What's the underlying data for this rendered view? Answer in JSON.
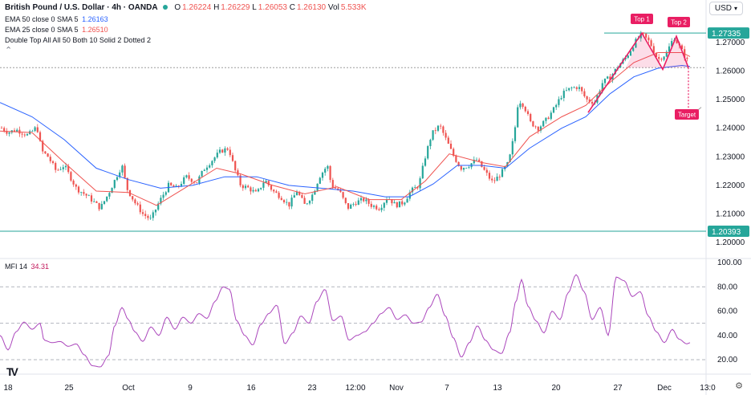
{
  "header": {
    "symbol": "British Pound / U.S. Dollar · 4h · OANDA",
    "o_label": "O",
    "o_value": "1.26224",
    "h_label": "H",
    "h_value": "1.26229",
    "l_label": "L",
    "l_value": "1.26053",
    "c_label": "C",
    "c_value": "1.26130",
    "vol_label": "Vol",
    "vol_value": "5.533K"
  },
  "indicators": [
    {
      "label": "EMA 50 close 0 SMA 5",
      "value": "1.26163",
      "color": "#2962ff"
    },
    {
      "label": "EMA 25 close 0 SMA 5",
      "value": "1.26510",
      "color": "#ef5350"
    },
    {
      "label": "Double Top All All 50 Both 10 Solid 2 Dotted 2",
      "value": "",
      "color": "#131722"
    }
  ],
  "currency_button": "USD",
  "mfi_label": "MFI 14",
  "mfi_value": "34.31",
  "chart_data": {
    "type": "candlestick",
    "price_axis": {
      "ticks": [
        "1.27000",
        "1.26000",
        "1.25000",
        "1.24000",
        "1.23000",
        "1.22000",
        "1.21000",
        "1.20000"
      ],
      "range": [
        1.1955,
        1.28
      ]
    },
    "highlighted_levels": [
      {
        "value": 1.27335,
        "label": "1.27335"
      },
      {
        "value": 1.20393,
        "label": "1.20393"
      }
    ],
    "neckline": 1.2612,
    "pattern": {
      "name": "Double Top",
      "top1_label": "Top 1",
      "top2_label": "Top 2",
      "target_label": "Target",
      "top1": 1.2733,
      "top2": 1.2722,
      "valley": 1.2606,
      "target": 1.2465
    },
    "x_axis_labels": [
      "18",
      "25",
      "Oct",
      "9",
      "16",
      "23",
      "12:00",
      "Nov",
      "7",
      "13",
      "20",
      "27",
      "Dec",
      "13:0"
    ],
    "close_path": [
      [
        0,
        1.2405
      ],
      [
        10,
        1.2385
      ],
      [
        20,
        1.2395
      ],
      [
        35,
        1.2375
      ],
      [
        46,
        1.2405
      ],
      [
        52,
        1.232
      ],
      [
        60,
        1.23
      ],
      [
        70,
        1.225
      ],
      [
        80,
        1.227
      ],
      [
        95,
        1.219
      ],
      [
        110,
        1.216
      ],
      [
        125,
        1.212
      ],
      [
        135,
        1.217
      ],
      [
        145,
        1.223
      ],
      [
        152,
        1.227
      ],
      [
        158,
        1.219
      ],
      [
        168,
        1.214
      ],
      [
        178,
        1.21
      ],
      [
        188,
        1.208
      ],
      [
        198,
        1.214
      ],
      [
        210,
        1.22
      ],
      [
        220,
        1.219
      ],
      [
        232,
        1.223
      ],
      [
        245,
        1.221
      ],
      [
        255,
        1.226
      ],
      [
        265,
        1.229
      ],
      [
        275,
        1.232
      ],
      [
        285,
        1.233
      ],
      [
        292,
        1.226
      ],
      [
        300,
        1.22
      ],
      [
        310,
        1.219
      ],
      [
        320,
        1.217
      ],
      [
        330,
        1.222
      ],
      [
        340,
        1.218
      ],
      [
        350,
        1.216
      ],
      [
        360,
        1.213
      ],
      [
        370,
        1.218
      ],
      [
        380,
        1.213
      ],
      [
        390,
        1.217
      ],
      [
        398,
        1.223
      ],
      [
        408,
        1.227
      ],
      [
        413,
        1.22
      ],
      [
        423,
        1.218
      ],
      [
        433,
        1.212
      ],
      [
        443,
        1.214
      ],
      [
        453,
        1.215
      ],
      [
        463,
        1.213
      ],
      [
        473,
        1.212
      ],
      [
        483,
        1.216
      ],
      [
        493,
        1.213
      ],
      [
        503,
        1.214
      ],
      [
        512,
        1.218
      ],
      [
        522,
        1.22
      ],
      [
        530,
        1.23
      ],
      [
        538,
        1.238
      ],
      [
        548,
        1.241
      ],
      [
        556,
        1.236
      ],
      [
        564,
        1.231
      ],
      [
        574,
        1.226
      ],
      [
        584,
        1.227
      ],
      [
        594,
        1.229
      ],
      [
        604,
        1.225
      ],
      [
        614,
        1.221
      ],
      [
        624,
        1.224
      ],
      [
        634,
        1.228
      ],
      [
        641,
        1.238
      ],
      [
        646,
        1.25
      ],
      [
        653,
        1.248
      ],
      [
        661,
        1.242
      ],
      [
        671,
        1.24
      ],
      [
        681,
        1.243
      ],
      [
        691,
        1.247
      ],
      [
        701,
        1.252
      ],
      [
        711,
        1.254
      ],
      [
        721,
        1.2545
      ],
      [
        731,
        1.25
      ],
      [
        741,
        1.249
      ],
      [
        751,
        1.256
      ],
      [
        761,
        1.258
      ],
      [
        771,
        1.262
      ],
      [
        781,
        1.265
      ],
      [
        791,
        1.27
      ],
      [
        800,
        1.273
      ],
      [
        810,
        1.27
      ],
      [
        820,
        1.264
      ],
      [
        830,
        1.266
      ],
      [
        840,
        1.272
      ],
      [
        848,
        1.268
      ],
      [
        856,
        1.264
      ],
      [
        860,
        1.2613
      ]
    ],
    "ema25_path": [
      [
        0,
        1.239
      ],
      [
        40,
        1.2385
      ],
      [
        80,
        1.228
      ],
      [
        120,
        1.218
      ],
      [
        160,
        1.2175
      ],
      [
        195,
        1.213
      ],
      [
        230,
        1.219
      ],
      [
        270,
        1.226
      ],
      [
        300,
        1.224
      ],
      [
        340,
        1.22
      ],
      [
        380,
        1.217
      ],
      [
        420,
        1.2195
      ],
      [
        460,
        1.215
      ],
      [
        500,
        1.215
      ],
      [
        530,
        1.2215
      ],
      [
        560,
        1.231
      ],
      [
        600,
        1.228
      ],
      [
        630,
        1.2265
      ],
      [
        660,
        1.237
      ],
      [
        700,
        1.244
      ],
      [
        730,
        1.248
      ],
      [
        760,
        1.256
      ],
      [
        790,
        1.263
      ],
      [
        820,
        1.2665
      ],
      [
        850,
        1.2665
      ],
      [
        860,
        1.2651
      ]
    ],
    "ema50_path": [
      [
        0,
        1.249
      ],
      [
        40,
        1.244
      ],
      [
        80,
        1.236
      ],
      [
        120,
        1.226
      ],
      [
        160,
        1.222
      ],
      [
        200,
        1.219
      ],
      [
        240,
        1.22
      ],
      [
        280,
        1.223
      ],
      [
        320,
        1.223
      ],
      [
        360,
        1.22
      ],
      [
        400,
        1.219
      ],
      [
        440,
        1.218
      ],
      [
        480,
        1.216
      ],
      [
        510,
        1.216
      ],
      [
        540,
        1.2205
      ],
      [
        570,
        1.227
      ],
      [
        600,
        1.227
      ],
      [
        630,
        1.226
      ],
      [
        660,
        1.233
      ],
      [
        700,
        1.24
      ],
      [
        730,
        1.244
      ],
      [
        760,
        1.252
      ],
      [
        790,
        1.258
      ],
      [
        820,
        1.261
      ],
      [
        850,
        1.262
      ],
      [
        860,
        1.2616
      ]
    ],
    "mfi_axis": {
      "ticks": [
        "100.00",
        "80.00",
        "60.00",
        "40.00",
        "20.00"
      ],
      "range": [
        9,
        102
      ],
      "bands": [
        80,
        50,
        20
      ]
    },
    "mfi_path": [
      [
        0,
        40
      ],
      [
        10,
        28
      ],
      [
        20,
        43
      ],
      [
        30,
        51
      ],
      [
        40,
        45
      ],
      [
        50,
        50
      ],
      [
        55,
        36
      ],
      [
        65,
        34
      ],
      [
        75,
        35
      ],
      [
        85,
        31
      ],
      [
        95,
        33
      ],
      [
        105,
        24
      ],
      [
        115,
        15
      ],
      [
        125,
        14
      ],
      [
        135,
        23
      ],
      [
        143,
        48
      ],
      [
        152,
        63
      ],
      [
        160,
        53
      ],
      [
        168,
        43
      ],
      [
        178,
        35
      ],
      [
        188,
        47
      ],
      [
        198,
        40
      ],
      [
        208,
        55
      ],
      [
        218,
        45
      ],
      [
        228,
        55
      ],
      [
        238,
        50
      ],
      [
        248,
        58
      ],
      [
        258,
        54
      ],
      [
        268,
        68
      ],
      [
        278,
        80
      ],
      [
        286,
        78
      ],
      [
        295,
        52
      ],
      [
        305,
        40
      ],
      [
        315,
        32
      ],
      [
        325,
        49
      ],
      [
        335,
        58
      ],
      [
        345,
        65
      ],
      [
        355,
        33
      ],
      [
        365,
        42
      ],
      [
        375,
        56
      ],
      [
        385,
        50
      ],
      [
        395,
        68
      ],
      [
        405,
        78
      ],
      [
        415,
        52
      ],
      [
        425,
        56
      ],
      [
        435,
        36
      ],
      [
        445,
        40
      ],
      [
        455,
        43
      ],
      [
        465,
        50
      ],
      [
        475,
        58
      ],
      [
        485,
        63
      ],
      [
        495,
        53
      ],
      [
        505,
        57
      ],
      [
        515,
        50
      ],
      [
        525,
        51
      ],
      [
        535,
        63
      ],
      [
        545,
        74
      ],
      [
        555,
        56
      ],
      [
        565,
        38
      ],
      [
        575,
        22
      ],
      [
        585,
        34
      ],
      [
        595,
        48
      ],
      [
        605,
        36
      ],
      [
        615,
        28
      ],
      [
        625,
        25
      ],
      [
        635,
        42
      ],
      [
        643,
        68
      ],
      [
        650,
        86
      ],
      [
        658,
        64
      ],
      [
        668,
        52
      ],
      [
        678,
        42
      ],
      [
        688,
        60
      ],
      [
        698,
        53
      ],
      [
        708,
        75
      ],
      [
        718,
        90
      ],
      [
        728,
        76
      ],
      [
        738,
        53
      ],
      [
        748,
        63
      ],
      [
        758,
        40
      ],
      [
        768,
        88
      ],
      [
        778,
        85
      ],
      [
        788,
        72
      ],
      [
        798,
        76
      ],
      [
        808,
        56
      ],
      [
        818,
        43
      ],
      [
        828,
        34
      ],
      [
        838,
        45
      ],
      [
        846,
        37
      ],
      [
        856,
        33
      ],
      [
        860,
        34
      ]
    ]
  }
}
